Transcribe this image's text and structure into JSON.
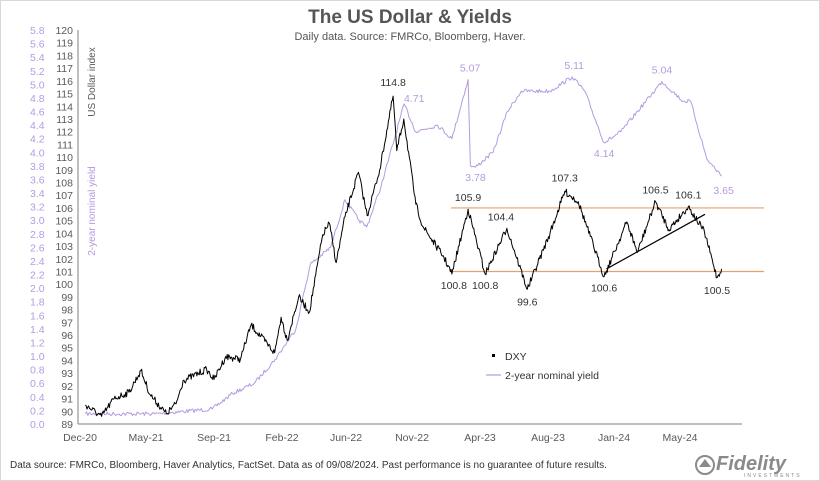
{
  "chart_data": {
    "type": "line",
    "title": "The US Dollar & Yields",
    "subtitle": "Daily data.  Source: FMRCo, Bloomberg, Haver.",
    "y_left_label": "2-year nominal yield",
    "y_right_label": "US Dollar index",
    "y_yield_ticks": [
      "0.0",
      "0.2",
      "0.4",
      "0.6",
      "0.8",
      "1.0",
      "1.2",
      "1.4",
      "1.6",
      "1.8",
      "2.0",
      "2.2",
      "2.4",
      "2.6",
      "2.8",
      "3.0",
      "3.2",
      "3.4",
      "3.6",
      "3.8",
      "4.0",
      "4.2",
      "4.4",
      "4.6",
      "4.8",
      "5.0",
      "5.2",
      "5.4",
      "5.6",
      "5.8"
    ],
    "y_dxy_ticks": [
      "89",
      "90",
      "91",
      "92",
      "93",
      "94",
      "95",
      "96",
      "97",
      "98",
      "99",
      "100",
      "101",
      "102",
      "103",
      "104",
      "105",
      "106",
      "107",
      "108",
      "109",
      "110",
      "111",
      "112",
      "113",
      "114",
      "115",
      "116",
      "117",
      "118",
      "119",
      "120"
    ],
    "ylim_yield": [
      0,
      5.8
    ],
    "ylim_dxy": [
      89,
      120
    ],
    "x_ticks": [
      "Dec-20",
      "May-21",
      "Sep-21",
      "Feb-22",
      "Jun-22",
      "Nov-22",
      "Apr-23",
      "Aug-23",
      "Jan-24",
      "May-24"
    ],
    "series": [
      {
        "name": "DXY",
        "color": "#000000",
        "points": [
          [
            "2020-12-01",
            90.5
          ],
          [
            "2021-01-05",
            89.6
          ],
          [
            "2021-02-01",
            91.0
          ],
          [
            "2021-03-05",
            91.5
          ],
          [
            "2021-03-31",
            93.2
          ],
          [
            "2021-04-20",
            91.3
          ],
          [
            "2021-05-25",
            89.8
          ],
          [
            "2021-06-15",
            90.6
          ],
          [
            "2021-06-30",
            92.4
          ],
          [
            "2021-08-20",
            93.3
          ],
          [
            "2021-09-05",
            92.5
          ],
          [
            "2021-09-30",
            94.3
          ],
          [
            "2021-11-01",
            94.1
          ],
          [
            "2021-11-24",
            96.8
          ],
          [
            "2022-01-14",
            94.6
          ],
          [
            "2022-01-28",
            97.4
          ],
          [
            "2022-02-10",
            95.6
          ],
          [
            "2022-03-07",
            99.0
          ],
          [
            "2022-03-30",
            97.8
          ],
          [
            "2022-04-28",
            103.9
          ],
          [
            "2022-05-12",
            104.8
          ],
          [
            "2022-05-27",
            101.7
          ],
          [
            "2022-06-15",
            105.3
          ],
          [
            "2022-07-14",
            108.8
          ],
          [
            "2022-08-02",
            105.4
          ],
          [
            "2022-08-29",
            109.0
          ],
          [
            "2022-09-27",
            114.8
          ],
          [
            "2022-10-05",
            110.5
          ],
          [
            "2022-10-20",
            113.0
          ],
          [
            "2022-11-15",
            106.3
          ],
          [
            "2022-12-01",
            104.5
          ],
          [
            "2023-01-15",
            102.1
          ],
          [
            "2023-02-01",
            100.8
          ],
          [
            "2023-03-08",
            105.9
          ],
          [
            "2023-04-14",
            100.8
          ],
          [
            "2023-05-31",
            104.4
          ],
          [
            "2023-07-14",
            99.6
          ],
          [
            "2023-09-01",
            104.0
          ],
          [
            "2023-10-03",
            107.3
          ],
          [
            "2023-11-01",
            106.5
          ],
          [
            "2023-12-27",
            100.6
          ],
          [
            "2024-02-14",
            104.9
          ],
          [
            "2024-03-08",
            102.5
          ],
          [
            "2024-04-16",
            106.5
          ],
          [
            "2024-05-15",
            104.3
          ],
          [
            "2024-06-26",
            106.1
          ],
          [
            "2024-07-31",
            104.1
          ],
          [
            "2024-08-27",
            100.5
          ],
          [
            "2024-09-06",
            101.2
          ]
        ]
      },
      {
        "name": "2-year nominal yield",
        "color": "#b49be0",
        "points": [
          [
            "2020-12-01",
            0.15
          ],
          [
            "2021-05-01",
            0.15
          ],
          [
            "2021-09-01",
            0.22
          ],
          [
            "2021-10-15",
            0.45
          ],
          [
            "2021-12-01",
            0.6
          ],
          [
            "2022-01-15",
            0.95
          ],
          [
            "2022-03-01",
            1.4
          ],
          [
            "2022-04-01",
            2.35
          ],
          [
            "2022-05-15",
            2.6
          ],
          [
            "2022-06-15",
            3.3
          ],
          [
            "2022-07-15",
            3.0
          ],
          [
            "2022-08-01",
            2.9
          ],
          [
            "2022-09-01",
            3.5
          ],
          [
            "2022-10-21",
            4.71
          ],
          [
            "2022-11-15",
            4.3
          ],
          [
            "2023-01-01",
            4.4
          ],
          [
            "2023-02-01",
            4.2
          ],
          [
            "2023-03-08",
            5.07
          ],
          [
            "2023-03-13",
            3.8
          ],
          [
            "2023-03-24",
            3.78
          ],
          [
            "2023-05-01",
            4.0
          ],
          [
            "2023-06-01",
            4.6
          ],
          [
            "2023-07-01",
            4.9
          ],
          [
            "2023-09-01",
            4.9
          ],
          [
            "2023-10-19",
            5.11
          ],
          [
            "2023-11-15",
            4.9
          ],
          [
            "2023-12-27",
            4.14
          ],
          [
            "2024-02-01",
            4.3
          ],
          [
            "2024-04-30",
            5.04
          ],
          [
            "2024-06-15",
            4.75
          ],
          [
            "2024-07-01",
            4.75
          ],
          [
            "2024-08-05",
            3.9
          ],
          [
            "2024-09-06",
            3.65
          ]
        ]
      }
    ],
    "annotations": {
      "dxy": [
        {
          "date": "2022-09-27",
          "value": 114.8,
          "label": "114.8"
        },
        {
          "date": "2023-02-01",
          "value": 100.8,
          "label": "100.8"
        },
        {
          "date": "2023-03-08",
          "value": 105.9,
          "label": "105.9"
        },
        {
          "date": "2023-04-14",
          "value": 100.8,
          "label": "100.8"
        },
        {
          "date": "2023-05-31",
          "value": 104.4,
          "label": "104.4"
        },
        {
          "date": "2023-07-14",
          "value": 99.6,
          "label": "99.6"
        },
        {
          "date": "2023-10-03",
          "value": 107.3,
          "label": "107.3"
        },
        {
          "date": "2023-12-27",
          "value": 100.6,
          "label": "100.6"
        },
        {
          "date": "2024-04-16",
          "value": 106.5,
          "label": "106.5"
        },
        {
          "date": "2024-06-26",
          "value": 106.1,
          "label": "106.1"
        },
        {
          "date": "2024-08-27",
          "value": 100.5,
          "label": "100.5"
        }
      ],
      "yield": [
        {
          "date": "2022-10-21",
          "value": 4.71,
          "label": "4.71"
        },
        {
          "date": "2023-03-08",
          "value": 5.07,
          "label": "5.07"
        },
        {
          "date": "2023-03-24",
          "value": 3.78,
          "label": "3.78"
        },
        {
          "date": "2023-10-19",
          "value": 5.11,
          "label": "5.11"
        },
        {
          "date": "2023-12-27",
          "value": 4.14,
          "label": "4.14"
        },
        {
          "date": "2024-04-30",
          "value": 5.04,
          "label": "5.04"
        },
        {
          "date": "2024-09-06",
          "value": 3.65,
          "label": "3.65"
        }
      ]
    },
    "reference_lines": [
      {
        "value": 106.0,
        "axis": "dxy",
        "color": "#e8a06b"
      },
      {
        "value": 101.0,
        "axis": "dxy",
        "color": "#e8a06b"
      }
    ],
    "trendline": {
      "from": [
        "2024-01-01",
        101.2
      ],
      "to": [
        "2024-08-01",
        105.5
      ],
      "color": "#000000"
    },
    "legend": {
      "placement": "center-right",
      "items": [
        "DXY",
        "2-year nominal yield"
      ]
    },
    "grid": false
  },
  "footer": "Data source: FMRCo, Bloomberg, Haver Analytics, FactSet. Data as of 09/08/2024. Past performance is no guarantee of future results.",
  "logo": {
    "name": "Fidelity",
    "tagline": "INVESTMENTS",
    "color": "#8a8a8a"
  }
}
